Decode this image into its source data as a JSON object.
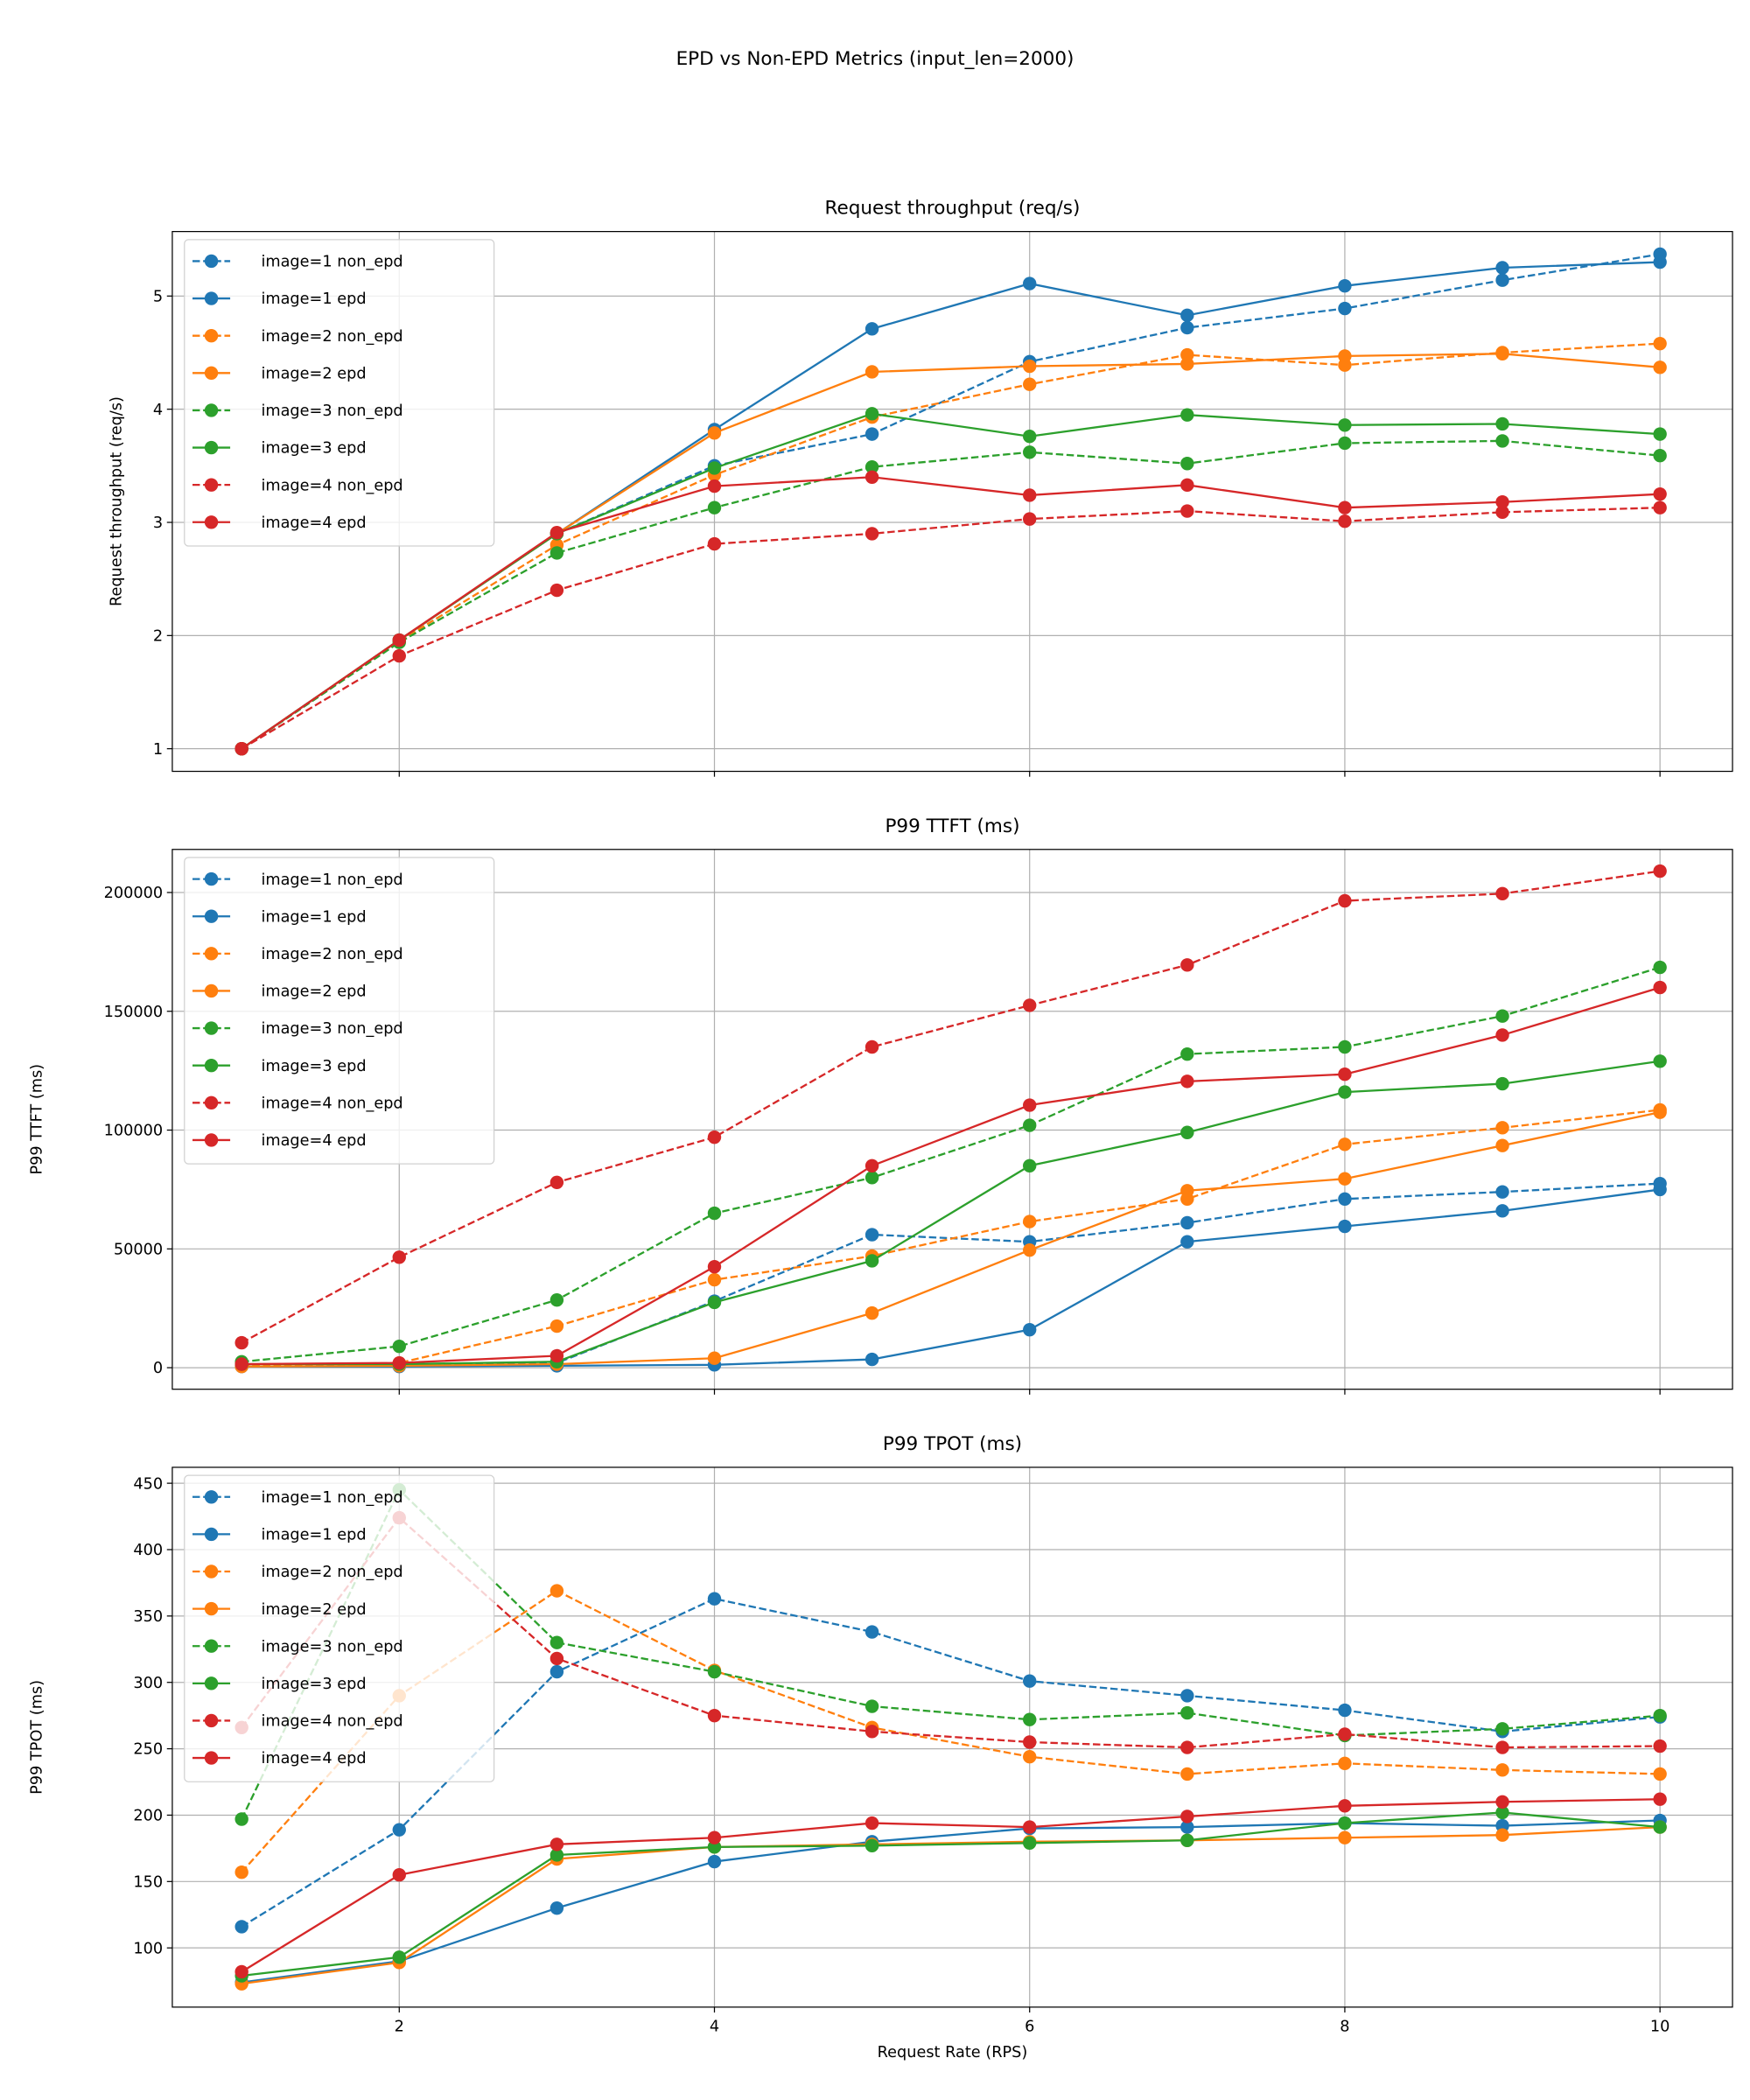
{
  "suptitle": "EPD vs Non-EPD Metrics (input_len=2000)",
  "colors": {
    "image=1": "#1f77b4",
    "image=2": "#ff7f0e",
    "image=3": "#2ca02c",
    "image=4": "#d62728"
  },
  "chart_data": [
    {
      "type": "line",
      "title": "Request throughput (req/s)",
      "xlabel": "",
      "ylabel": "Request throughput (req/s)",
      "x": [
        1,
        2,
        3,
        4,
        5,
        6,
        7,
        8,
        9,
        10
      ],
      "xlim": [
        0.56,
        10.46
      ],
      "ylim": [
        0.8,
        5.57
      ],
      "xticks": [
        2,
        4,
        6,
        8,
        10
      ],
      "show_xtick_labels": false,
      "yticks": [
        1,
        2,
        3,
        4,
        5
      ],
      "ytick_labels": [
        "1",
        "2",
        "3",
        "4",
        "5"
      ],
      "grid": true,
      "legend_position": "top-left",
      "series": [
        {
          "name": "image=1 non_epd",
          "color": "#1f77b4",
          "style": "dashed",
          "values": [
            1.0,
            1.96,
            2.9,
            3.5,
            3.78,
            4.42,
            4.72,
            4.89,
            5.14,
            5.37
          ]
        },
        {
          "name": "image=1 epd",
          "color": "#1f77b4",
          "style": "solid",
          "values": [
            1.0,
            1.96,
            2.9,
            3.82,
            4.71,
            5.11,
            4.83,
            5.09,
            5.25,
            5.3
          ]
        },
        {
          "name": "image=2 non_epd",
          "color": "#ff7f0e",
          "style": "dashed",
          "values": [
            1.0,
            1.95,
            2.8,
            3.42,
            3.93,
            4.22,
            4.48,
            4.39,
            4.5,
            4.58
          ]
        },
        {
          "name": "image=2 epd",
          "color": "#ff7f0e",
          "style": "solid",
          "values": [
            1.0,
            1.96,
            2.9,
            3.79,
            4.33,
            4.38,
            4.4,
            4.47,
            4.49,
            4.37
          ]
        },
        {
          "name": "image=3 non_epd",
          "color": "#2ca02c",
          "style": "dashed",
          "values": [
            1.0,
            1.94,
            2.73,
            3.13,
            3.49,
            3.62,
            3.52,
            3.7,
            3.72,
            3.59
          ]
        },
        {
          "name": "image=3 epd",
          "color": "#2ca02c",
          "style": "solid",
          "values": [
            1.0,
            1.96,
            2.9,
            3.48,
            3.96,
            3.76,
            3.95,
            3.86,
            3.87,
            3.78
          ]
        },
        {
          "name": "image=4 non_epd",
          "color": "#d62728",
          "style": "dashed",
          "values": [
            1.0,
            1.82,
            2.4,
            2.81,
            2.9,
            3.03,
            3.1,
            3.01,
            3.09,
            3.13
          ]
        },
        {
          "name": "image=4 epd",
          "color": "#d62728",
          "style": "solid",
          "values": [
            1.0,
            1.96,
            2.91,
            3.32,
            3.4,
            3.24,
            3.33,
            3.13,
            3.18,
            3.25
          ]
        }
      ]
    },
    {
      "type": "line",
      "title": "P99 TTFT (ms)",
      "xlabel": "",
      "ylabel": "P99 TTFT (ms)",
      "x": [
        1,
        2,
        3,
        4,
        5,
        6,
        7,
        8,
        9,
        10
      ],
      "xlim": [
        0.56,
        10.46
      ],
      "ylim": [
        -9065,
        218130
      ],
      "xticks": [
        2,
        4,
        6,
        8,
        10
      ],
      "show_xtick_labels": false,
      "yticks": [
        0,
        50000,
        100000,
        150000,
        200000
      ],
      "ytick_labels": [
        "0",
        "50000",
        "100000",
        "150000",
        "200000"
      ],
      "grid": true,
      "legend_position": "top-left",
      "series": [
        {
          "name": "image=1 non_epd",
          "color": "#1f77b4",
          "style": "dashed",
          "values": [
            1000,
            1000,
            2000,
            28000,
            56000,
            53000,
            61000,
            71000,
            74000,
            77500
          ]
        },
        {
          "name": "image=1 epd",
          "color": "#1f77b4",
          "style": "solid",
          "values": [
            500,
            500,
            800,
            1200,
            3500,
            16000,
            53000,
            59500,
            66000,
            75000
          ]
        },
        {
          "name": "image=2 non_epd",
          "color": "#ff7f0e",
          "style": "dashed",
          "values": [
            1000,
            2000,
            17500,
            37000,
            47000,
            61500,
            71000,
            94000,
            101000,
            108500
          ]
        },
        {
          "name": "image=2 epd",
          "color": "#ff7f0e",
          "style": "solid",
          "values": [
            500,
            800,
            1500,
            4000,
            23000,
            49500,
            74500,
            79500,
            93500,
            107500
          ]
        },
        {
          "name": "image=3 non_epd",
          "color": "#2ca02c",
          "style": "dashed",
          "values": [
            2500,
            9000,
            28500,
            65000,
            80000,
            102000,
            132000,
            135000,
            148000,
            168500
          ]
        },
        {
          "name": "image=3 epd",
          "color": "#2ca02c",
          "style": "solid",
          "values": [
            1500,
            1500,
            2500,
            27500,
            45000,
            85000,
            99000,
            116000,
            119500,
            129000
          ]
        },
        {
          "name": "image=4 non_epd",
          "color": "#d62728",
          "style": "dashed",
          "values": [
            10500,
            46500,
            78000,
            97000,
            135000,
            152500,
            169500,
            196500,
            199500,
            209000
          ]
        },
        {
          "name": "image=4 epd",
          "color": "#d62728",
          "style": "solid",
          "values": [
            1500,
            2000,
            5000,
            42500,
            85000,
            110500,
            120500,
            123500,
            140000,
            160000
          ]
        }
      ]
    },
    {
      "type": "line",
      "title": "P99 TPOT (ms)",
      "xlabel": "Request Rate (RPS)",
      "ylabel": "P99 TPOT (ms)",
      "x": [
        1,
        2,
        3,
        4,
        5,
        6,
        7,
        8,
        9,
        10
      ],
      "xlim": [
        0.56,
        10.46
      ],
      "ylim": [
        55.4,
        462
      ],
      "xticks": [
        2,
        4,
        6,
        8,
        10
      ],
      "show_xtick_labels": true,
      "xtick_labels": [
        "2",
        "4",
        "6",
        "8",
        "10"
      ],
      "yticks": [
        100,
        150,
        200,
        250,
        300,
        350,
        400,
        450
      ],
      "ytick_labels": [
        "100",
        "150",
        "200",
        "250",
        "300",
        "350",
        "400",
        "450"
      ],
      "grid": true,
      "legend_position": "top-left",
      "series": [
        {
          "name": "image=1 non_epd",
          "color": "#1f77b4",
          "style": "dashed",
          "values": [
            116,
            189,
            308,
            363,
            338,
            301,
            290,
            279,
            263,
            274
          ]
        },
        {
          "name": "image=1 epd",
          "color": "#1f77b4",
          "style": "solid",
          "values": [
            74,
            90,
            130,
            165,
            180,
            190,
            191,
            194,
            192,
            196
          ]
        },
        {
          "name": "image=2 non_epd",
          "color": "#ff7f0e",
          "style": "dashed",
          "values": [
            157,
            290,
            369,
            309,
            266,
            244,
            231,
            239,
            234,
            231
          ]
        },
        {
          "name": "image=2 epd",
          "color": "#ff7f0e",
          "style": "solid",
          "values": [
            73,
            89,
            167,
            176,
            178,
            180,
            181,
            183,
            185,
            191
          ]
        },
        {
          "name": "image=3 non_epd",
          "color": "#2ca02c",
          "style": "dashed",
          "values": [
            197,
            445,
            330,
            308,
            282,
            272,
            277,
            260,
            265,
            275
          ]
        },
        {
          "name": "image=3 epd",
          "color": "#2ca02c",
          "style": "solid",
          "values": [
            79,
            93,
            170,
            176,
            177,
            179,
            181,
            194,
            202,
            191
          ]
        },
        {
          "name": "image=4 non_epd",
          "color": "#d62728",
          "style": "dashed",
          "values": [
            266,
            424,
            318,
            275,
            263,
            255,
            251,
            261,
            251,
            252
          ]
        },
        {
          "name": "image=4 epd",
          "color": "#d62728",
          "style": "solid",
          "values": [
            82,
            155,
            178,
            183,
            194,
            191,
            199,
            207,
            210,
            212
          ]
        }
      ]
    }
  ]
}
